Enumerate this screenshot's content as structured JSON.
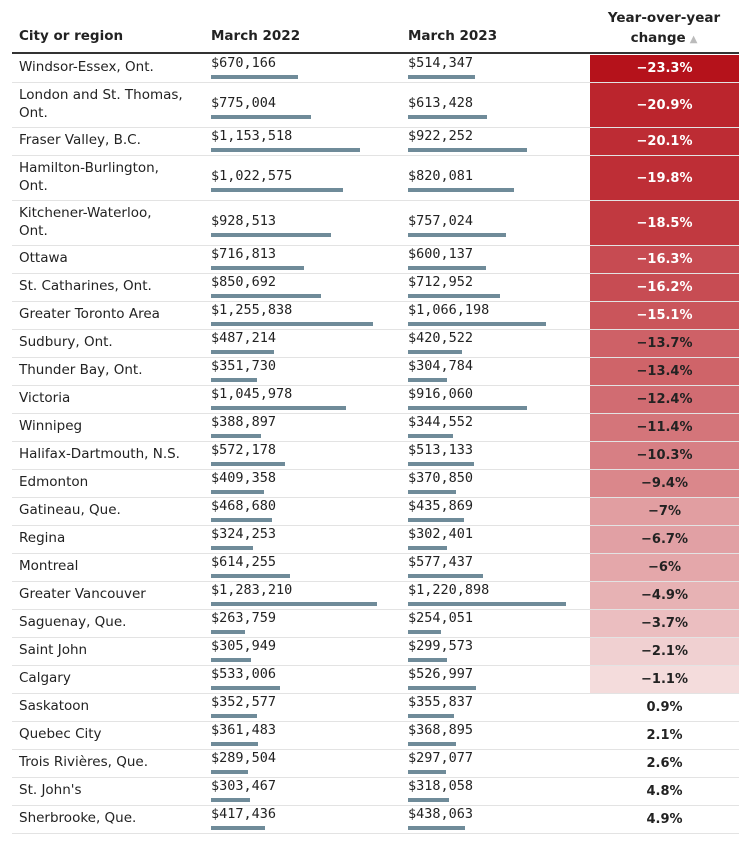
{
  "headers": {
    "city": "City or region",
    "march_2022": "March 2022",
    "march_2023": "March 2023",
    "change_line1": "Year-over-year",
    "change_line2": "change",
    "sort_indicator": "▲"
  },
  "chart_data": {
    "type": "table",
    "columns": [
      "City or region",
      "March 2022",
      "March 2023",
      "Year-over-year change"
    ],
    "bar_max": 1283210,
    "rows": [
      {
        "city": [
          "Windsor-Essex, Ont."
        ],
        "m2022": 670166,
        "m2022_text": "$670,166",
        "m2023": 514347,
        "m2023_text": "$514,347",
        "change": -23.3,
        "change_text": "−23.3%"
      },
      {
        "city": [
          "London and St. Thomas,",
          "Ont."
        ],
        "m2022": 775004,
        "m2022_text": "$775,004",
        "m2023": 613428,
        "m2023_text": "$613,428",
        "change": -20.9,
        "change_text": "−20.9%"
      },
      {
        "city": [
          "Fraser Valley, B.C."
        ],
        "m2022": 1153518,
        "m2022_text": "$1,153,518",
        "m2023": 922252,
        "m2023_text": "$922,252",
        "change": -20.1,
        "change_text": "−20.1%"
      },
      {
        "city": [
          "Hamilton-Burlington,",
          "Ont."
        ],
        "m2022": 1022575,
        "m2022_text": "$1,022,575",
        "m2023": 820081,
        "m2023_text": "$820,081",
        "change": -19.8,
        "change_text": "−19.8%"
      },
      {
        "city": [
          "Kitchener-Waterloo,",
          "Ont."
        ],
        "m2022": 928513,
        "m2022_text": "$928,513",
        "m2023": 757024,
        "m2023_text": "$757,024",
        "change": -18.5,
        "change_text": "−18.5%"
      },
      {
        "city": [
          "Ottawa"
        ],
        "m2022": 716813,
        "m2022_text": "$716,813",
        "m2023": 600137,
        "m2023_text": "$600,137",
        "change": -16.3,
        "change_text": "−16.3%"
      },
      {
        "city": [
          "St. Catharines, Ont."
        ],
        "m2022": 850692,
        "m2022_text": "$850,692",
        "m2023": 712952,
        "m2023_text": "$712,952",
        "change": -16.2,
        "change_text": "−16.2%"
      },
      {
        "city": [
          "Greater Toronto Area"
        ],
        "m2022": 1255838,
        "m2022_text": "$1,255,838",
        "m2023": 1066198,
        "m2023_text": "$1,066,198",
        "change": -15.1,
        "change_text": "−15.1%"
      },
      {
        "city": [
          "Sudbury, Ont."
        ],
        "m2022": 487214,
        "m2022_text": "$487,214",
        "m2023": 420522,
        "m2023_text": "$420,522",
        "change": -13.7,
        "change_text": "−13.7%"
      },
      {
        "city": [
          "Thunder Bay, Ont."
        ],
        "m2022": 351730,
        "m2022_text": "$351,730",
        "m2023": 304784,
        "m2023_text": "$304,784",
        "change": -13.4,
        "change_text": "−13.4%"
      },
      {
        "city": [
          "Victoria"
        ],
        "m2022": 1045978,
        "m2022_text": "$1,045,978",
        "m2023": 916060,
        "m2023_text": "$916,060",
        "change": -12.4,
        "change_text": "−12.4%"
      },
      {
        "city": [
          "Winnipeg"
        ],
        "m2022": 388897,
        "m2022_text": "$388,897",
        "m2023": 344552,
        "m2023_text": "$344,552",
        "change": -11.4,
        "change_text": "−11.4%"
      },
      {
        "city": [
          "Halifax-Dartmouth, N.S."
        ],
        "m2022": 572178,
        "m2022_text": "$572,178",
        "m2023": 513133,
        "m2023_text": "$513,133",
        "change": -10.3,
        "change_text": "−10.3%"
      },
      {
        "city": [
          "Edmonton"
        ],
        "m2022": 409358,
        "m2022_text": "$409,358",
        "m2023": 370850,
        "m2023_text": "$370,850",
        "change": -9.4,
        "change_text": "−9.4%"
      },
      {
        "city": [
          "Gatineau, Que."
        ],
        "m2022": 468680,
        "m2022_text": "$468,680",
        "m2023": 435869,
        "m2023_text": "$435,869",
        "change": -7,
        "change_text": "−7%"
      },
      {
        "city": [
          "Regina"
        ],
        "m2022": 324253,
        "m2022_text": "$324,253",
        "m2023": 302401,
        "m2023_text": "$302,401",
        "change": -6.7,
        "change_text": "−6.7%"
      },
      {
        "city": [
          "Montreal"
        ],
        "m2022": 614255,
        "m2022_text": "$614,255",
        "m2023": 577437,
        "m2023_text": "$577,437",
        "change": -6,
        "change_text": "−6%"
      },
      {
        "city": [
          "Greater Vancouver"
        ],
        "m2022": 1283210,
        "m2022_text": "$1,283,210",
        "m2023": 1220898,
        "m2023_text": "$1,220,898",
        "change": -4.9,
        "change_text": "−4.9%"
      },
      {
        "city": [
          "Saguenay, Que."
        ],
        "m2022": 263759,
        "m2022_text": "$263,759",
        "m2023": 254051,
        "m2023_text": "$254,051",
        "change": -3.7,
        "change_text": "−3.7%"
      },
      {
        "city": [
          "Saint John"
        ],
        "m2022": 305949,
        "m2022_text": "$305,949",
        "m2023": 299573,
        "m2023_text": "$299,573",
        "change": -2.1,
        "change_text": "−2.1%"
      },
      {
        "city": [
          "Calgary"
        ],
        "m2022": 533006,
        "m2022_text": "$533,006",
        "m2023": 526997,
        "m2023_text": "$526,997",
        "change": -1.1,
        "change_text": "−1.1%"
      },
      {
        "city": [
          "Saskatoon"
        ],
        "m2022": 352577,
        "m2022_text": "$352,577",
        "m2023": 355837,
        "m2023_text": "$355,837",
        "change": 0.9,
        "change_text": "0.9%"
      },
      {
        "city": [
          "Quebec City"
        ],
        "m2022": 361483,
        "m2022_text": "$361,483",
        "m2023": 368895,
        "m2023_text": "$368,895",
        "change": 2.1,
        "change_text": "2.1%"
      },
      {
        "city": [
          "Trois Rivières, Que."
        ],
        "m2022": 289504,
        "m2022_text": "$289,504",
        "m2023": 297077,
        "m2023_text": "$297,077",
        "change": 2.6,
        "change_text": "2.6%"
      },
      {
        "city": [
          "St. John's"
        ],
        "m2022": 303467,
        "m2022_text": "$303,467",
        "m2023": 318058,
        "m2023_text": "$318,058",
        "change": 4.8,
        "change_text": "4.8%"
      },
      {
        "city": [
          "Sherbrooke, Que."
        ],
        "m2022": 417436,
        "m2022_text": "$417,436",
        "m2023": 438063,
        "m2023_text": "$438,063",
        "change": 4.9,
        "change_text": "4.9%"
      }
    ]
  },
  "colors": {
    "bar": "#6f8b99",
    "change_strong": "#b5121b",
    "change_light": "#f9ecec",
    "text": "#222222"
  }
}
